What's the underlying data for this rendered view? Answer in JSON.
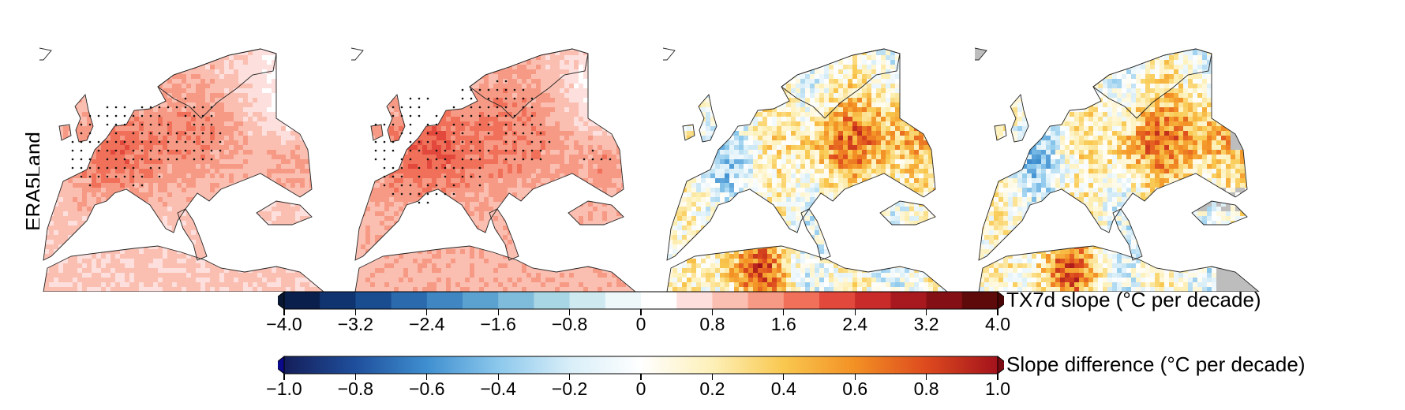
{
  "figure": {
    "row_label": "ERA5Land",
    "panels": [
      {
        "id": "a",
        "kind": "trend",
        "stippled": true
      },
      {
        "id": "b",
        "kind": "trend",
        "stippled": true
      },
      {
        "id": "c",
        "kind": "difference",
        "stippled": false
      },
      {
        "id": "d",
        "kind": "difference",
        "stippled": false,
        "masked_grey": true
      }
    ]
  },
  "colorbars": [
    {
      "id": "tx7d",
      "title": "TX7d slope (°C per decade)",
      "ticks": [
        "−4.0",
        "−3.2",
        "−2.4",
        "−1.6",
        "−0.8",
        "0",
        "0.8",
        "1.6",
        "2.4",
        "3.2",
        "4.0"
      ],
      "min": -4.0,
      "max": 4.0,
      "bins": 20,
      "colors": [
        "#0b1f4d",
        "#0f3470",
        "#1a4d8f",
        "#2a6aad",
        "#3f86c2",
        "#5ba2d1",
        "#7fbcdc",
        "#a8d6e4",
        "#cfe9f0",
        "#eef8fb",
        "#ffffff",
        "#fde0dd",
        "#fbbfb2",
        "#f79a85",
        "#f0705a",
        "#e2483c",
        "#c92a2a",
        "#a8191f",
        "#841015",
        "#5e0a0a"
      ],
      "extend_low_color": "#081633",
      "extend_high_color": "#4a0606"
    },
    {
      "id": "diff",
      "title": "Slope difference (°C per decade)",
      "ticks": [
        "−1.0",
        "−0.8",
        "−0.6",
        "−0.4",
        "−0.2",
        "0",
        "0.2",
        "0.4",
        "0.6",
        "0.8",
        "1.0"
      ],
      "min": -1.0,
      "max": 1.0,
      "gradient": [
        "#141e5a",
        "#1f4f9c",
        "#3f8fd0",
        "#8cc8ec",
        "#d8eef8",
        "#ffffff",
        "#fdf0b8",
        "#f9c84f",
        "#f39024",
        "#dd4a1e",
        "#a3121c"
      ],
      "extend_low_color": "#0a0a8a",
      "extend_high_color": "#7a0b12"
    }
  ]
}
